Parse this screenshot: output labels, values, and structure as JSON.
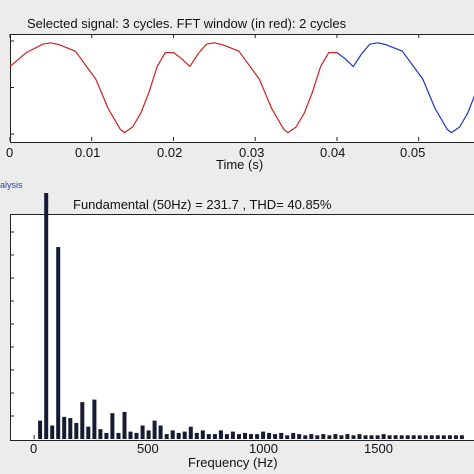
{
  "top_plot": {
    "title": "Selected signal: 3 cycles. FFT window (in red): 2 cycles",
    "xlabel": "Time (s)",
    "x_ticks": [
      "0",
      "0.01",
      "0.02",
      "0.03",
      "0.04",
      "0.05"
    ]
  },
  "bottom_plot": {
    "section_label": "alysis",
    "title": "Fundamental (50Hz) = 231.7 , THD= 40.85%",
    "xlabel": "Frequency (Hz)",
    "x_ticks": [
      "0",
      "500",
      "1000",
      "1500"
    ]
  },
  "chart_data": [
    {
      "type": "line",
      "title": "Selected signal: 3 cycles. FFT window (in red): 2 cycles",
      "xlabel": "Time (s)",
      "ylabel": "",
      "xlim": [
        0,
        0.0575
      ],
      "ylim": [
        -1.15,
        1.15
      ],
      "grid": false,
      "colors": {
        "fft_window": "#cc2222",
        "remaining": "#2233bb"
      },
      "series": [
        {
          "segment": "fft_window",
          "x": [
            0,
            0.002,
            0.004,
            0.005,
            0.006,
            0.008,
            0.0105,
            0.012,
            0.0135,
            0.014,
            0.015,
            0.016,
            0.017,
            0.018,
            0.019,
            0.02,
            0.021,
            0.022,
            0.023,
            0.024,
            0.025,
            0.026,
            0.028,
            0.0305,
            0.032,
            0.0335,
            0.034,
            0.035,
            0.036,
            0.037,
            0.038,
            0.039,
            0.04
          ],
          "y": [
            0.45,
            0.75,
            0.93,
            0.96,
            0.92,
            0.78,
            0.18,
            -0.45,
            -0.9,
            -0.97,
            -0.85,
            -0.55,
            -0.1,
            0.45,
            0.75,
            0.75,
            0.62,
            0.45,
            0.72,
            0.93,
            0.96,
            0.92,
            0.78,
            0.18,
            -0.45,
            -0.9,
            -0.97,
            -0.85,
            -0.55,
            -0.1,
            0.45,
            0.75,
            0.75
          ]
        },
        {
          "segment": "remaining",
          "x": [
            0.04,
            0.041,
            0.042,
            0.043,
            0.044,
            0.045,
            0.046,
            0.048,
            0.0505,
            0.052,
            0.0535,
            0.054,
            0.055,
            0.056,
            0.057
          ],
          "y": [
            0.75,
            0.62,
            0.45,
            0.72,
            0.93,
            0.96,
            0.92,
            0.78,
            0.18,
            -0.45,
            -0.9,
            -0.97,
            -0.85,
            -0.55,
            -0.1
          ]
        }
      ]
    },
    {
      "type": "bar",
      "title": "Fundamental (50Hz) = 231.7 , THD= 40.85%",
      "xlabel": "Frequency (Hz)",
      "ylabel": "",
      "xlim": [
        -100,
        1850
      ],
      "ylim": [
        0,
        100
      ],
      "grid": false,
      "colors": {
        "bars": "#161b33"
      },
      "x": [
        25,
        50,
        75,
        100,
        125,
        150,
        175,
        200,
        225,
        250,
        275,
        300,
        325,
        350,
        375,
        400,
        425,
        450,
        475,
        500,
        525,
        550,
        575,
        600,
        625,
        650,
        675,
        700,
        725,
        750,
        775,
        800,
        825,
        850,
        875,
        900,
        925,
        950,
        975,
        1000,
        1025,
        1050,
        1075,
        1100,
        1125,
        1150,
        1175,
        1200,
        1225,
        1250,
        1275,
        1300,
        1325,
        1350,
        1375,
        1400,
        1425,
        1450,
        1475,
        1500,
        1525,
        1550,
        1575,
        1600,
        1625,
        1650,
        1675,
        1700,
        1725,
        1750,
        1775
      ],
      "values": [
        7.5,
        100,
        5.5,
        78,
        9,
        8.5,
        6.5,
        15,
        5,
        16,
        4,
        2.5,
        10.5,
        2.5,
        11,
        3,
        2.5,
        5.5,
        3.5,
        7.5,
        5.5,
        2,
        3.5,
        2.5,
        3,
        5,
        2.5,
        3.5,
        2,
        2,
        3.5,
        2,
        3,
        2,
        2.5,
        2,
        2,
        3,
        2.5,
        2,
        2.5,
        1.5,
        2.5,
        2,
        1.5,
        2,
        1.5,
        2,
        1.5,
        2,
        1.5,
        2,
        1.5,
        2,
        1.5,
        1.5,
        1.5,
        2,
        1.5,
        1.5,
        1.5,
        1.5,
        1.5,
        1.5,
        1.5,
        1.5,
        1.5,
        1.5,
        1.5,
        1.5,
        1.5
      ]
    }
  ]
}
